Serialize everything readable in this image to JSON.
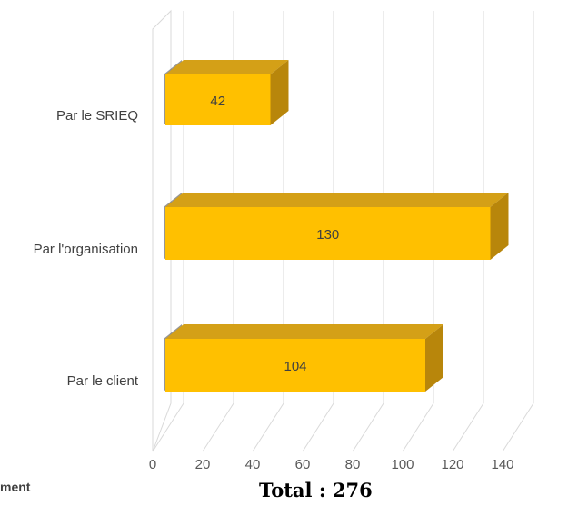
{
  "chart_data": {
    "type": "bar",
    "orientation": "horizontal",
    "style": "3d",
    "categories": [
      "Par le SRIEQ",
      "Par l'organisation",
      "Par le client"
    ],
    "values": [
      42,
      130,
      104
    ],
    "xlim": [
      0,
      140
    ],
    "xticks": [
      "0",
      "20",
      "40",
      "60",
      "80",
      "100",
      "120",
      "140"
    ],
    "grid": true,
    "bar_color": "#FFC000",
    "bar_side_color": "#B8860B",
    "bar_top_color": "#D4A017"
  },
  "footer": {
    "left_text": "ment",
    "total_text": "Total : 276"
  }
}
